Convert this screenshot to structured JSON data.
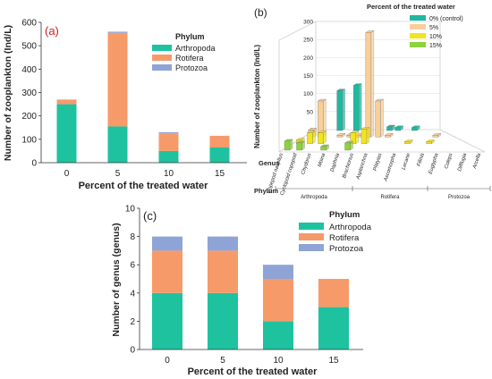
{
  "colors": {
    "arthropoda": "#1fc29f",
    "rotifera": "#f79a6a",
    "protozoa": "#8fa4d6",
    "control": "#1fb8a0",
    "p5": "#f7cf9a",
    "p10": "#f2e51e",
    "p15": "#8ed23c",
    "panel_label": "#d0201a"
  },
  "chart_data": [
    {
      "panel": "(a)",
      "type": "bar",
      "stacked": true,
      "categories": [
        "0",
        "5",
        "10",
        "15"
      ],
      "series": [
        {
          "name": "Arthropoda",
          "values": [
            250,
            155,
            50,
            65
          ]
        },
        {
          "name": "Rotifera",
          "values": [
            18,
            400,
            75,
            50
          ]
        },
        {
          "name": "Protozoa",
          "values": [
            2,
            5,
            5,
            0
          ]
        }
      ],
      "legend_title": "Phylum",
      "legend_position": "top-right",
      "xlabel": "Percent of the treated water",
      "ylabel": "Number of zooplankton (Ind/L)",
      "ylim": [
        0,
        600
      ],
      "yticks": [
        "0",
        "100",
        "200",
        "300",
        "400",
        "500",
        "600"
      ],
      "grid": false
    },
    {
      "panel": "(b)",
      "type": "bar",
      "style": "3d",
      "legend_title": "Percent of the treated water",
      "legend_position": "top-right",
      "zlabel": "Number of zooplankton (Ind/L)",
      "zlim": [
        0,
        300
      ],
      "zticks": [
        "0",
        "50",
        "100",
        "150",
        "200",
        "250",
        "300"
      ],
      "genus_axis_label": "Genus",
      "phylum_axis_label": "Phylum",
      "genera": [
        "Copepod nauplius",
        "Cyclopoid copepod",
        "Chydorus",
        "Moina",
        "Daphnia",
        "Brachionus",
        "Asplanchna",
        "Platyias",
        "Ascomorpha",
        "Lecane",
        "Filinia",
        "Euglypha",
        "Coleps",
        "Difflugia",
        "Arcella"
      ],
      "phyla": [
        "Arthropoda",
        "Rotifera",
        "Protozoa"
      ],
      "series": [
        {
          "name": "0% (control)",
          "values": [
            0,
            0,
            110,
            0,
            125,
            0,
            0,
            0,
            10,
            8,
            0,
            8,
            0,
            0,
            0
          ]
        },
        {
          "name": "5%",
          "values": [
            20,
            100,
            0,
            5,
            5,
            5,
            290,
            100,
            5,
            0,
            0,
            0,
            0,
            5,
            0
          ]
        },
        {
          "name": "10%",
          "values": [
            10,
            30,
            30,
            0,
            0,
            30,
            40,
            0,
            0,
            0,
            5,
            0,
            5,
            0,
            0
          ]
        },
        {
          "name": "15%",
          "values": [
            25,
            20,
            0,
            10,
            0,
            20,
            0,
            0,
            0,
            0,
            0,
            0,
            0,
            0,
            0
          ]
        }
      ]
    },
    {
      "panel": "(c)",
      "type": "bar",
      "stacked": true,
      "categories": [
        "0",
        "5",
        "10",
        "15"
      ],
      "series": [
        {
          "name": "Arthropoda",
          "values": [
            4,
            4,
            2,
            3
          ]
        },
        {
          "name": "Rotifera",
          "values": [
            3,
            3,
            3,
            2
          ]
        },
        {
          "name": "Protozoa",
          "values": [
            1,
            1,
            1,
            0
          ]
        }
      ],
      "legend_title": "Phylum",
      "legend_position": "top-right",
      "xlabel": "Percent of the treated water",
      "ylabel": "Number of genus (genus)",
      "ylim": [
        0,
        10
      ],
      "yticks": [
        "0",
        "2",
        "4",
        "6",
        "8",
        "10"
      ],
      "grid": false
    }
  ]
}
